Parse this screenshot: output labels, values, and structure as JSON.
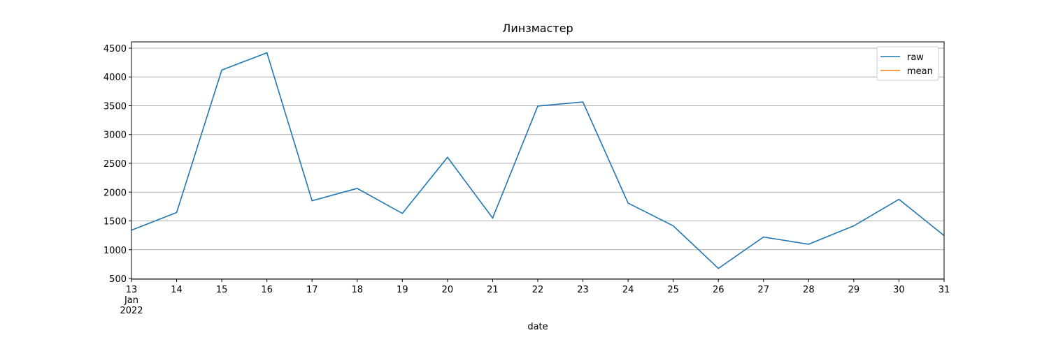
{
  "chart_data": {
    "type": "line",
    "title": "Линзмастер",
    "xlabel": "date",
    "x": [
      "2022-01-13",
      "2022-01-14",
      "2022-01-15",
      "2022-01-16",
      "2022-01-17",
      "2022-01-18",
      "2022-01-19",
      "2022-01-20",
      "2022-01-21",
      "2022-01-22",
      "2022-01-23",
      "2022-01-24",
      "2022-01-25",
      "2022-01-26",
      "2022-01-27",
      "2022-01-28",
      "2022-01-29",
      "2022-01-30",
      "2022-01-31"
    ],
    "series": [
      {
        "name": "raw",
        "color": "#1f77b4",
        "values": [
          1340,
          1645,
          4120,
          4420,
          1850,
          2065,
          1630,
          2605,
          1550,
          3495,
          3565,
          1810,
          1415,
          675,
          1220,
          1095,
          1415,
          1875,
          1245
        ]
      },
      {
        "name": "mean",
        "color": "#ff7f0e",
        "values": [
          null,
          null,
          null,
          null,
          null,
          null,
          null,
          null,
          null,
          null,
          null,
          null,
          null,
          null,
          null,
          null,
          null,
          null,
          null
        ]
      }
    ],
    "xlim": [
      "2022-01-13",
      "2022-01-31"
    ],
    "xticks": [
      {
        "value": "2022-01-13",
        "label": "13\nJan\n2022"
      },
      {
        "value": "2022-01-14",
        "label": "14"
      },
      {
        "value": "2022-01-15",
        "label": "15"
      },
      {
        "value": "2022-01-16",
        "label": "16"
      },
      {
        "value": "2022-01-17",
        "label": "17"
      },
      {
        "value": "2022-01-18",
        "label": "18"
      },
      {
        "value": "2022-01-19",
        "label": "19"
      },
      {
        "value": "2022-01-20",
        "label": "20"
      },
      {
        "value": "2022-01-21",
        "label": "21"
      },
      {
        "value": "2022-01-22",
        "label": "22"
      },
      {
        "value": "2022-01-23",
        "label": "23"
      },
      {
        "value": "2022-01-24",
        "label": "24"
      },
      {
        "value": "2022-01-25",
        "label": "25"
      },
      {
        "value": "2022-01-26",
        "label": "26"
      },
      {
        "value": "2022-01-27",
        "label": "27"
      },
      {
        "value": "2022-01-28",
        "label": "28"
      },
      {
        "value": "2022-01-29",
        "label": "29"
      },
      {
        "value": "2022-01-30",
        "label": "30"
      },
      {
        "value": "2022-01-31",
        "label": "31"
      }
    ],
    "ylim": [
      488,
      4609
    ],
    "yticks": [
      500,
      1000,
      1500,
      2000,
      2500,
      3000,
      3500,
      4000,
      4500
    ],
    "grid": "y",
    "legend": "upper right"
  }
}
